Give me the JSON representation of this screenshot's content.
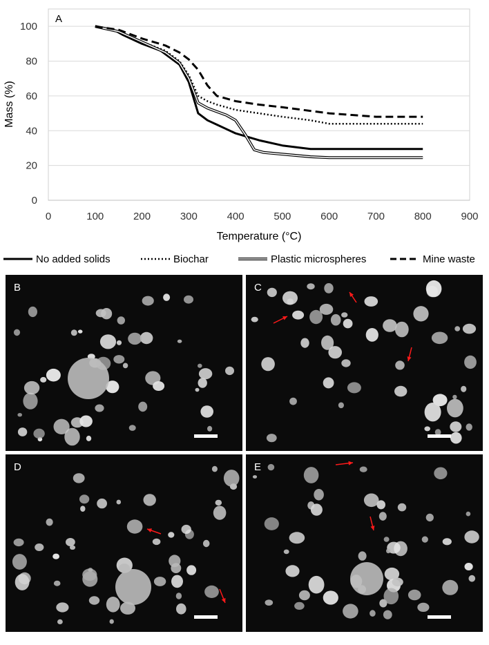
{
  "chart_data": {
    "type": "line",
    "panel_label": "A",
    "xlabel": "Temperature (°C)",
    "ylabel": "Mass (%)",
    "xlim": [
      0,
      900
    ],
    "ylim": [
      0,
      110
    ],
    "xticks": [
      0,
      100,
      200,
      300,
      400,
      500,
      600,
      700,
      800,
      900
    ],
    "yticks": [
      0,
      20,
      40,
      60,
      80,
      100
    ],
    "grid": "horizontal",
    "legend_position": "bottom",
    "series": [
      {
        "name": "No added solids",
        "style": "solid-thick",
        "x": [
          100,
          140,
          160,
          200,
          240,
          280,
          300,
          320,
          340,
          360,
          380,
          400,
          450,
          500,
          560,
          600,
          700,
          800
        ],
        "y": [
          100,
          98,
          95,
          90,
          86,
          78,
          68,
          50,
          46,
          43.5,
          41,
          38.5,
          34.5,
          31.5,
          29.5,
          29.5,
          29.5,
          29.5
        ]
      },
      {
        "name": "Biochar",
        "style": "dotted",
        "x": [
          100,
          150,
          200,
          250,
          280,
          300,
          320,
          340,
          360,
          400,
          450,
          500,
          560,
          600,
          700,
          800
        ],
        "y": [
          100,
          97,
          91,
          86,
          80,
          72,
          60,
          57,
          55,
          52,
          50,
          48,
          46,
          44,
          44,
          44
        ]
      },
      {
        "name": "Plastic microspheres",
        "style": "double",
        "x": [
          100,
          150,
          200,
          250,
          280,
          300,
          320,
          340,
          360,
          380,
          400,
          420,
          440,
          460,
          500,
          560,
          600,
          700,
          800
        ],
        "y": [
          100,
          97,
          91,
          85,
          79,
          70,
          56,
          53,
          51,
          49,
          46,
          38,
          29,
          27.5,
          26.5,
          25,
          24.5,
          24.5,
          24.5
        ]
      },
      {
        "name": "Mine waste",
        "style": "dashed",
        "x": [
          100,
          150,
          200,
          250,
          280,
          300,
          320,
          340,
          360,
          400,
          450,
          500,
          600,
          700,
          800
        ],
        "y": [
          100,
          98,
          93,
          89,
          85,
          81,
          75,
          66,
          60,
          57,
          55,
          53.5,
          50,
          48,
          48
        ]
      }
    ]
  },
  "photo_panels": [
    {
      "label": "B"
    },
    {
      "label": "C"
    },
    {
      "label": "D"
    },
    {
      "label": "E"
    }
  ],
  "colors": {
    "photo_background": "#0b0b0b",
    "particle": "#d9d9d9",
    "arrow": "#ff1a1a",
    "scale_bar": "#ffffff"
  }
}
